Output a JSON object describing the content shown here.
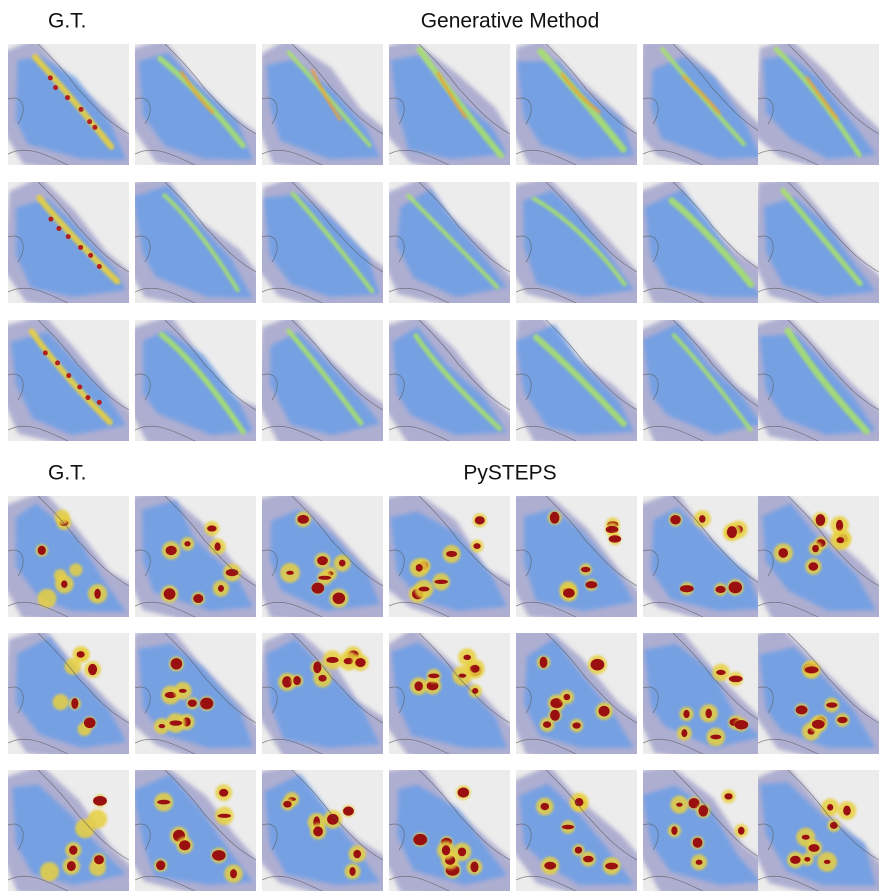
{
  "panels": [
    {
      "left_label": "G.T.",
      "title": "Generative Method"
    },
    {
      "left_label": "G.T.",
      "title": "PySTEPS"
    }
  ]
}
